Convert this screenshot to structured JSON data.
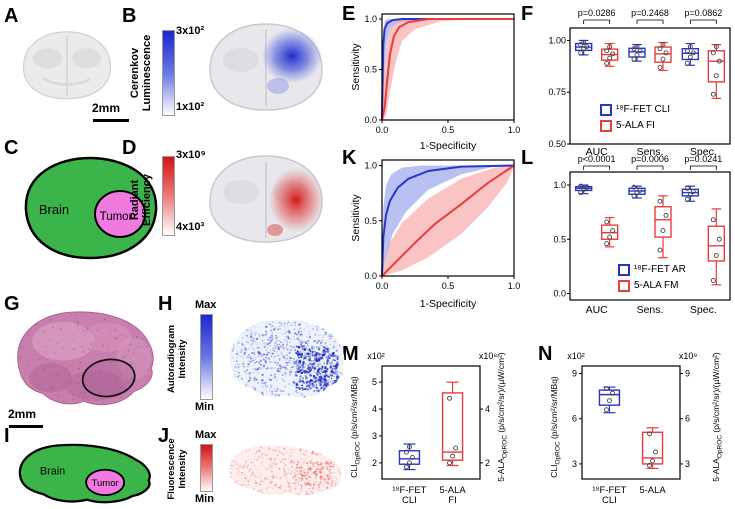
{
  "colors": {
    "blue": "#2a35c8",
    "blue_band": "rgba(70,90,220,0.38)",
    "red": "#e93c3c",
    "red_band": "rgba(243,100,100,0.38)",
    "green": "#3bb54a",
    "pink": "#f07ae0"
  },
  "panels": {
    "A": {
      "letter": "A",
      "scalebar": "2mm"
    },
    "B": {
      "letter": "B",
      "colorbar_title_line1": "Cerenkov",
      "colorbar_title_line2": "Luminescence",
      "colorbar_top": "3x10²",
      "colorbar_bottom": "1x10²"
    },
    "C": {
      "letter": "C",
      "brain_label": "Brain",
      "tumor_label": "Tumor"
    },
    "D": {
      "letter": "D",
      "colorbar_title_line1": "Radiant",
      "colorbar_title_line2": "Efficiency",
      "colorbar_top": "3x10⁹",
      "colorbar_bottom": "4x10³"
    },
    "E": {
      "letter": "E"
    },
    "F": {
      "letter": "F",
      "legend": [
        {
          "label": "¹⁸F-FET CLI",
          "color": "blue"
        },
        {
          "label": "5-ALA FI",
          "color": "red"
        }
      ]
    },
    "G": {
      "letter": "G",
      "scalebar": "2mm"
    },
    "H": {
      "letter": "H",
      "colorbar_title_line1": "Autoradiogram",
      "colorbar_title_line2": "Intensity",
      "colorbar_top": "Max",
      "colorbar_bottom": "Min"
    },
    "I": {
      "letter": "I",
      "brain_label": "Brain",
      "tumor_label": "Tumor"
    },
    "J": {
      "letter": "J",
      "colorbar_title_line1": "Fluorescence",
      "colorbar_title_line2": "Intensity",
      "colorbar_top": "Max",
      "colorbar_bottom": "Min"
    },
    "K": {
      "letter": "K"
    },
    "L": {
      "letter": "L",
      "legend": [
        {
          "label": "¹⁸F-FET AR",
          "color": "blue"
        },
        {
          "label": "5-ALA FM",
          "color": "red"
        }
      ]
    },
    "M": {
      "letter": "M",
      "left_label_main": "CLI",
      "left_label_sub": "OpROC",
      "left_label_units": " (p/s/cm²/sr/MBq)",
      "right_label_main": "5-ALA",
      "right_label_sub": "OpROC",
      "right_label_units": " (p/s/cm²/sr)/(µW/cm²)"
    },
    "N": {
      "letter": "N",
      "left_label_main": "CLI",
      "left_label_sub": "OpROC",
      "left_label_units": " (p/s/cm²/sr/MBq)",
      "right_label_main": "5-ALA",
      "right_label_sub": "OpROC",
      "right_label_units": " (p/s/cm²/sr)/(µW/cm²)"
    }
  },
  "chart_data": [
    {
      "id": "E",
      "type": "line",
      "subtype": "roc",
      "xlabel": "1-Specificity",
      "ylabel": "Sensitivity",
      "xlim": [
        0,
        1
      ],
      "ylim": [
        0,
        1.05
      ],
      "xticks": [
        0,
        0.5,
        1
      ],
      "yticks": [
        0,
        0.5,
        1
      ],
      "series": [
        {
          "name": "¹⁸F-FET CLI",
          "color": "blue",
          "mean": [
            [
              0,
              0
            ],
            [
              0.005,
              0.45
            ],
            [
              0.01,
              0.75
            ],
            [
              0.02,
              0.9
            ],
            [
              0.04,
              0.96
            ],
            [
              0.08,
              0.99
            ],
            [
              0.15,
              1.0
            ],
            [
              1,
              1
            ]
          ],
          "upper": [
            [
              0,
              0
            ],
            [
              0.004,
              0.65
            ],
            [
              0.01,
              0.9
            ],
            [
              0.025,
              0.99
            ],
            [
              0.05,
              1.0
            ],
            [
              1,
              1
            ]
          ],
          "lower": [
            [
              0,
              0
            ],
            [
              0.01,
              0.3
            ],
            [
              0.03,
              0.72
            ],
            [
              0.06,
              0.9
            ],
            [
              0.12,
              0.97
            ],
            [
              0.3,
              1.0
            ],
            [
              1,
              1
            ]
          ]
        },
        {
          "name": "5-ALA FI",
          "color": "red",
          "mean": [
            [
              0,
              0
            ],
            [
              0.02,
              0.12
            ],
            [
              0.04,
              0.4
            ],
            [
              0.06,
              0.65
            ],
            [
              0.09,
              0.83
            ],
            [
              0.13,
              0.92
            ],
            [
              0.2,
              0.97
            ],
            [
              0.35,
              1.0
            ],
            [
              1,
              1
            ]
          ],
          "upper": [
            [
              0,
              0
            ],
            [
              0.01,
              0.35
            ],
            [
              0.03,
              0.7
            ],
            [
              0.06,
              0.9
            ],
            [
              0.12,
              0.98
            ],
            [
              0.25,
              1.0
            ],
            [
              1,
              1
            ]
          ],
          "lower": [
            [
              0,
              0
            ],
            [
              0.03,
              0.04
            ],
            [
              0.06,
              0.28
            ],
            [
              0.1,
              0.55
            ],
            [
              0.15,
              0.78
            ],
            [
              0.25,
              0.9
            ],
            [
              0.45,
              0.98
            ],
            [
              0.75,
              1.0
            ],
            [
              1,
              1
            ]
          ]
        }
      ]
    },
    {
      "id": "K",
      "type": "line",
      "subtype": "roc",
      "xlabel": "1-Specificity",
      "ylabel": "Sensitivity",
      "xlim": [
        0,
        1
      ],
      "ylim": [
        0,
        1.05
      ],
      "xticks": [
        0,
        0.5,
        1
      ],
      "yticks": [
        0,
        0.5,
        1
      ],
      "series": [
        {
          "name": "¹⁸F-FET AR",
          "color": "blue",
          "mean": [
            [
              0,
              0
            ],
            [
              0.01,
              0.35
            ],
            [
              0.03,
              0.55
            ],
            [
              0.06,
              0.68
            ],
            [
              0.12,
              0.8
            ],
            [
              0.2,
              0.88
            ],
            [
              0.35,
              0.95
            ],
            [
              0.6,
              0.99
            ],
            [
              1,
              1
            ]
          ],
          "upper": [
            [
              0,
              0
            ],
            [
              0.01,
              0.62
            ],
            [
              0.03,
              0.82
            ],
            [
              0.07,
              0.92
            ],
            [
              0.15,
              0.98
            ],
            [
              0.3,
              1.0
            ],
            [
              1,
              1
            ]
          ],
          "lower": [
            [
              0,
              0
            ],
            [
              0.02,
              0.12
            ],
            [
              0.08,
              0.38
            ],
            [
              0.18,
              0.58
            ],
            [
              0.35,
              0.78
            ],
            [
              0.6,
              0.92
            ],
            [
              0.85,
              0.99
            ],
            [
              1,
              1
            ]
          ]
        },
        {
          "name": "5-ALA FM",
          "color": "red",
          "mean": [
            [
              0,
              0
            ],
            [
              0.1,
              0.12
            ],
            [
              0.25,
              0.3
            ],
            [
              0.4,
              0.47
            ],
            [
              0.6,
              0.65
            ],
            [
              0.8,
              0.84
            ],
            [
              1,
              1
            ]
          ],
          "upper": [
            [
              0,
              0
            ],
            [
              0.05,
              0.28
            ],
            [
              0.15,
              0.48
            ],
            [
              0.35,
              0.7
            ],
            [
              0.6,
              0.88
            ],
            [
              0.85,
              0.98
            ],
            [
              1,
              1
            ]
          ],
          "lower": [
            [
              0,
              0
            ],
            [
              0.15,
              0.05
            ],
            [
              0.35,
              0.17
            ],
            [
              0.6,
              0.38
            ],
            [
              0.8,
              0.62
            ],
            [
              0.95,
              0.85
            ],
            [
              1,
              1
            ]
          ]
        }
      ]
    },
    {
      "id": "F",
      "type": "box",
      "ylim": [
        0.5,
        1.06
      ],
      "yticks": [
        {
          "v": 1.0,
          "label": "1.00"
        },
        {
          "v": 0.75,
          "label": "0.75"
        },
        {
          "v": 0.5,
          "label": "0.50"
        }
      ],
      "categories": [
        "AUC",
        "Sens.",
        "Spec."
      ],
      "pvalues": [
        "p=0.0286",
        "p=0.2468",
        "p=0.0862"
      ],
      "series": [
        {
          "name": "¹⁸F-FET CLI",
          "color": "blue",
          "boxes": [
            {
              "lo": 0.93,
              "q1": 0.952,
              "med": 0.968,
              "q3": 0.985,
              "hi": 1.0,
              "pts": [
                0.94,
                0.96,
                0.97,
                0.98,
                0.99
              ]
            },
            {
              "lo": 0.9,
              "q1": 0.92,
              "med": 0.945,
              "q3": 0.962,
              "hi": 0.98,
              "pts": [
                0.91,
                0.93,
                0.95,
                0.96,
                0.97
              ]
            },
            {
              "lo": 0.88,
              "q1": 0.908,
              "med": 0.938,
              "q3": 0.96,
              "hi": 0.985,
              "pts": [
                0.89,
                0.92,
                0.94,
                0.95,
                0.97
              ]
            }
          ]
        },
        {
          "name": "5-ALA FI",
          "color": "red",
          "boxes": [
            {
              "lo": 0.875,
              "q1": 0.905,
              "med": 0.932,
              "q3": 0.958,
              "hi": 0.985,
              "pts": [
                0.89,
                0.915,
                0.935,
                0.95,
                0.97
              ]
            },
            {
              "lo": 0.855,
              "q1": 0.895,
              "med": 0.935,
              "q3": 0.968,
              "hi": 0.99,
              "pts": [
                0.87,
                0.91,
                0.94,
                0.96,
                0.98
              ]
            },
            {
              "lo": 0.72,
              "q1": 0.8,
              "med": 0.9,
              "q3": 0.95,
              "hi": 0.98,
              "pts": [
                0.74,
                0.83,
                0.9,
                0.94,
                0.97
              ]
            }
          ]
        }
      ]
    },
    {
      "id": "L",
      "type": "box",
      "ylim": [
        -0.06,
        1.12
      ],
      "yticks": [
        {
          "v": 1.0,
          "label": "1.0"
        },
        {
          "v": 0.5,
          "label": "0.5"
        },
        {
          "v": 0.0,
          "label": "0.0"
        }
      ],
      "categories": [
        "AUC",
        "Sens.",
        "Spec."
      ],
      "pvalues": [
        "p<0.0001",
        "p=0.0006",
        "p=0.0241"
      ],
      "series": [
        {
          "name": "¹⁸F-FET AR",
          "color": "blue",
          "boxes": [
            {
              "lo": 0.92,
              "q1": 0.95,
              "med": 0.97,
              "q3": 0.985,
              "hi": 1.0,
              "pts": [
                0.93,
                0.96,
                0.975,
                0.99
              ]
            },
            {
              "lo": 0.88,
              "q1": 0.915,
              "med": 0.945,
              "q3": 0.97,
              "hi": 0.99,
              "pts": [
                0.9,
                0.93,
                0.95,
                0.98
              ]
            },
            {
              "lo": 0.85,
              "q1": 0.9,
              "med": 0.93,
              "q3": 0.96,
              "hi": 0.99,
              "pts": [
                0.87,
                0.91,
                0.94,
                0.97
              ]
            }
          ]
        },
        {
          "name": "5-ALA FM",
          "color": "red",
          "boxes": [
            {
              "lo": 0.43,
              "q1": 0.5,
              "med": 0.56,
              "q3": 0.63,
              "hi": 0.7,
              "pts": [
                0.46,
                0.52,
                0.58,
                0.66
              ]
            },
            {
              "lo": 0.33,
              "q1": 0.52,
              "med": 0.68,
              "q3": 0.8,
              "hi": 0.9,
              "pts": [
                0.4,
                0.58,
                0.72,
                0.85
              ]
            },
            {
              "lo": 0.08,
              "q1": 0.3,
              "med": 0.44,
              "q3": 0.62,
              "hi": 0.78,
              "pts": [
                0.12,
                0.35,
                0.5,
                0.68
              ]
            }
          ]
        }
      ]
    },
    {
      "id": "M",
      "type": "box_dual",
      "axes": {
        "left": {
          "exp": "x10²",
          "lim": [
            1.4,
            5.6
          ],
          "ticks": [
            2,
            3,
            4,
            5
          ]
        },
        "right": {
          "exp": "x10⁸",
          "lim": [
            1.4,
            5.6
          ],
          "ticks": [
            2,
            4
          ]
        }
      },
      "categories": [
        [
          "¹⁸F-FET",
          "CLI"
        ],
        [
          "5-ALA",
          "FI"
        ]
      ],
      "boxes": [
        {
          "color": "blue",
          "axis": "left",
          "stats": {
            "lo": 1.75,
            "q1": 1.95,
            "med": 2.15,
            "q3": 2.45,
            "hi": 2.7,
            "pts": [
              1.85,
              2.0,
              2.2,
              2.4,
              2.6
            ]
          }
        },
        {
          "color": "red",
          "axis": "right",
          "stats": {
            "lo": 1.9,
            "q1": 2.1,
            "med": 2.4,
            "q3": 4.6,
            "hi": 5.0,
            "pts": [
              2.0,
              2.25,
              2.55,
              4.4
            ]
          }
        }
      ]
    },
    {
      "id": "N",
      "type": "box_dual",
      "axes": {
        "left": {
          "exp": "x10²",
          "lim": [
            2,
            9.5
          ],
          "ticks": [
            3,
            6,
            9
          ]
        },
        "right": {
          "exp": "x10⁹",
          "lim": [
            2,
            9.5
          ],
          "ticks": [
            3,
            6,
            9
          ]
        }
      },
      "categories": [
        [
          "¹⁸F-FET",
          "CLI"
        ],
        [
          "5-ALA"
        ]
      ],
      "boxes": [
        {
          "color": "blue",
          "axis": "left",
          "stats": {
            "lo": 6.4,
            "q1": 6.9,
            "med": 7.6,
            "q3": 7.9,
            "hi": 8.1,
            "pts": [
              6.6,
              7.2,
              7.7,
              8.0
            ]
          }
        },
        {
          "color": "red",
          "axis": "right",
          "stats": {
            "lo": 2.7,
            "q1": 3.0,
            "med": 3.4,
            "q3": 5.1,
            "hi": 5.4,
            "pts": [
              2.9,
              3.2,
              3.8,
              5.0
            ]
          }
        }
      ]
    }
  ]
}
